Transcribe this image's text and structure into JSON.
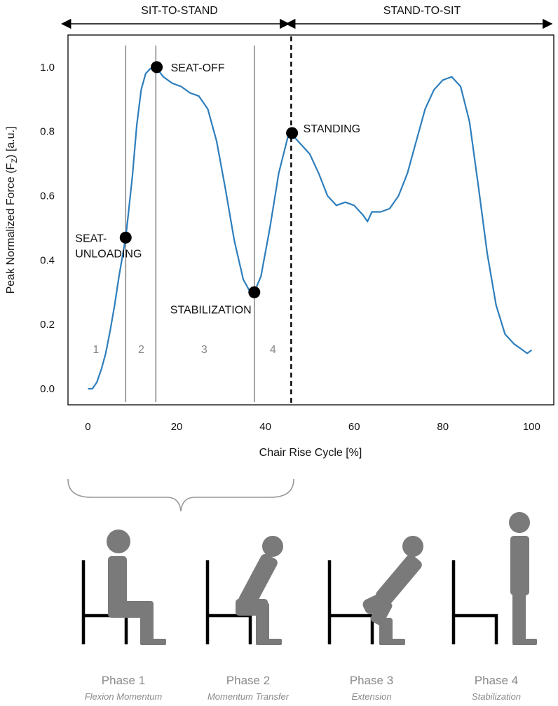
{
  "header": {
    "left_label": "SIT-TO-STAND",
    "right_label": "STAND-TO-SIT"
  },
  "chart_data": {
    "type": "line",
    "xlabel": "Chair Rise Cycle [%]",
    "ylabel_main": "Peak Normalized Force (F",
    "ylabel_sub": "Z",
    "ylabel_tail": ") [a.u.]",
    "xlim": [
      -4.5,
      105
    ],
    "ylim": [
      -0.05,
      1.1
    ],
    "xticks": [
      0,
      20,
      40,
      60,
      80,
      100
    ],
    "xtick_labels": [
      "0",
      "20",
      "40",
      "60",
      "80",
      "100"
    ],
    "yticks": [
      0,
      0.2,
      0.4,
      0.6,
      0.8,
      1.0
    ],
    "ytick_labels": [
      "0.0",
      "0.2",
      "0.4",
      "0.6",
      "0.8",
      "1.0"
    ],
    "series": [
      {
        "color": "#2e7ebc",
        "x": [
          0,
          1,
          2,
          3,
          4,
          5,
          6,
          7,
          8,
          8.5,
          9,
          10,
          11,
          12,
          13,
          14,
          15.3,
          17,
          19,
          21,
          23,
          25,
          27,
          29,
          31,
          33,
          35,
          37,
          37.5,
          39,
          41,
          43,
          45,
          46,
          48,
          50,
          52,
          54,
          56,
          58,
          60,
          62,
          63,
          64,
          66,
          68,
          70,
          72,
          74,
          76,
          78,
          80,
          82,
          84,
          86,
          88,
          90,
          92,
          94,
          96,
          98,
          99,
          100
        ],
        "y": [
          0.0,
          0.0,
          0.02,
          0.06,
          0.11,
          0.18,
          0.26,
          0.35,
          0.43,
          0.47,
          0.53,
          0.66,
          0.82,
          0.93,
          0.98,
          0.995,
          1.0,
          0.97,
          0.95,
          0.94,
          0.92,
          0.91,
          0.87,
          0.77,
          0.62,
          0.46,
          0.34,
          0.29,
          0.3,
          0.35,
          0.5,
          0.67,
          0.78,
          0.79,
          0.76,
          0.73,
          0.67,
          0.6,
          0.57,
          0.58,
          0.57,
          0.54,
          0.52,
          0.55,
          0.55,
          0.56,
          0.6,
          0.67,
          0.77,
          0.87,
          0.93,
          0.96,
          0.97,
          0.94,
          0.83,
          0.63,
          0.42,
          0.26,
          0.17,
          0.14,
          0.12,
          0.11,
          0.12
        ]
      }
    ],
    "phase_dividers": [
      8.5,
      15.3,
      37.5
    ],
    "phase_numbers": [
      {
        "x": 1.8,
        "label": "1"
      },
      {
        "x": 12,
        "label": "2"
      },
      {
        "x": 26.2,
        "label": "3"
      },
      {
        "x": 41.7,
        "label": "4"
      }
    ],
    "transition_x": 45.8,
    "events": [
      {
        "x": 8.5,
        "y": 0.47,
        "label": "SEAT-\nUNLOADING",
        "name": "seat-unloading"
      },
      {
        "x": 15.5,
        "y": 1.0,
        "label": "SEAT-OFF",
        "name": "seat-off"
      },
      {
        "x": 37.5,
        "y": 0.3,
        "label": "STABILIZATION",
        "name": "stabilization"
      },
      {
        "x": 46.0,
        "y": 0.795,
        "label": "STANDING",
        "name": "standing"
      }
    ]
  },
  "phases": [
    {
      "title": "Phase 1",
      "subtitle": "Flexion Momentum"
    },
    {
      "title": "Phase 2",
      "subtitle": "Momentum Transfer"
    },
    {
      "title": "Phase 3",
      "subtitle": "Extension"
    },
    {
      "title": "Phase 4",
      "subtitle": "Stabilization"
    }
  ],
  "colors": {
    "line": "#2e7ebc",
    "divider": "#8c8c8c",
    "figure": "#7a7a7a",
    "chair": "#000000",
    "brace": "#999999",
    "phase_text": "#8a8a8a"
  }
}
